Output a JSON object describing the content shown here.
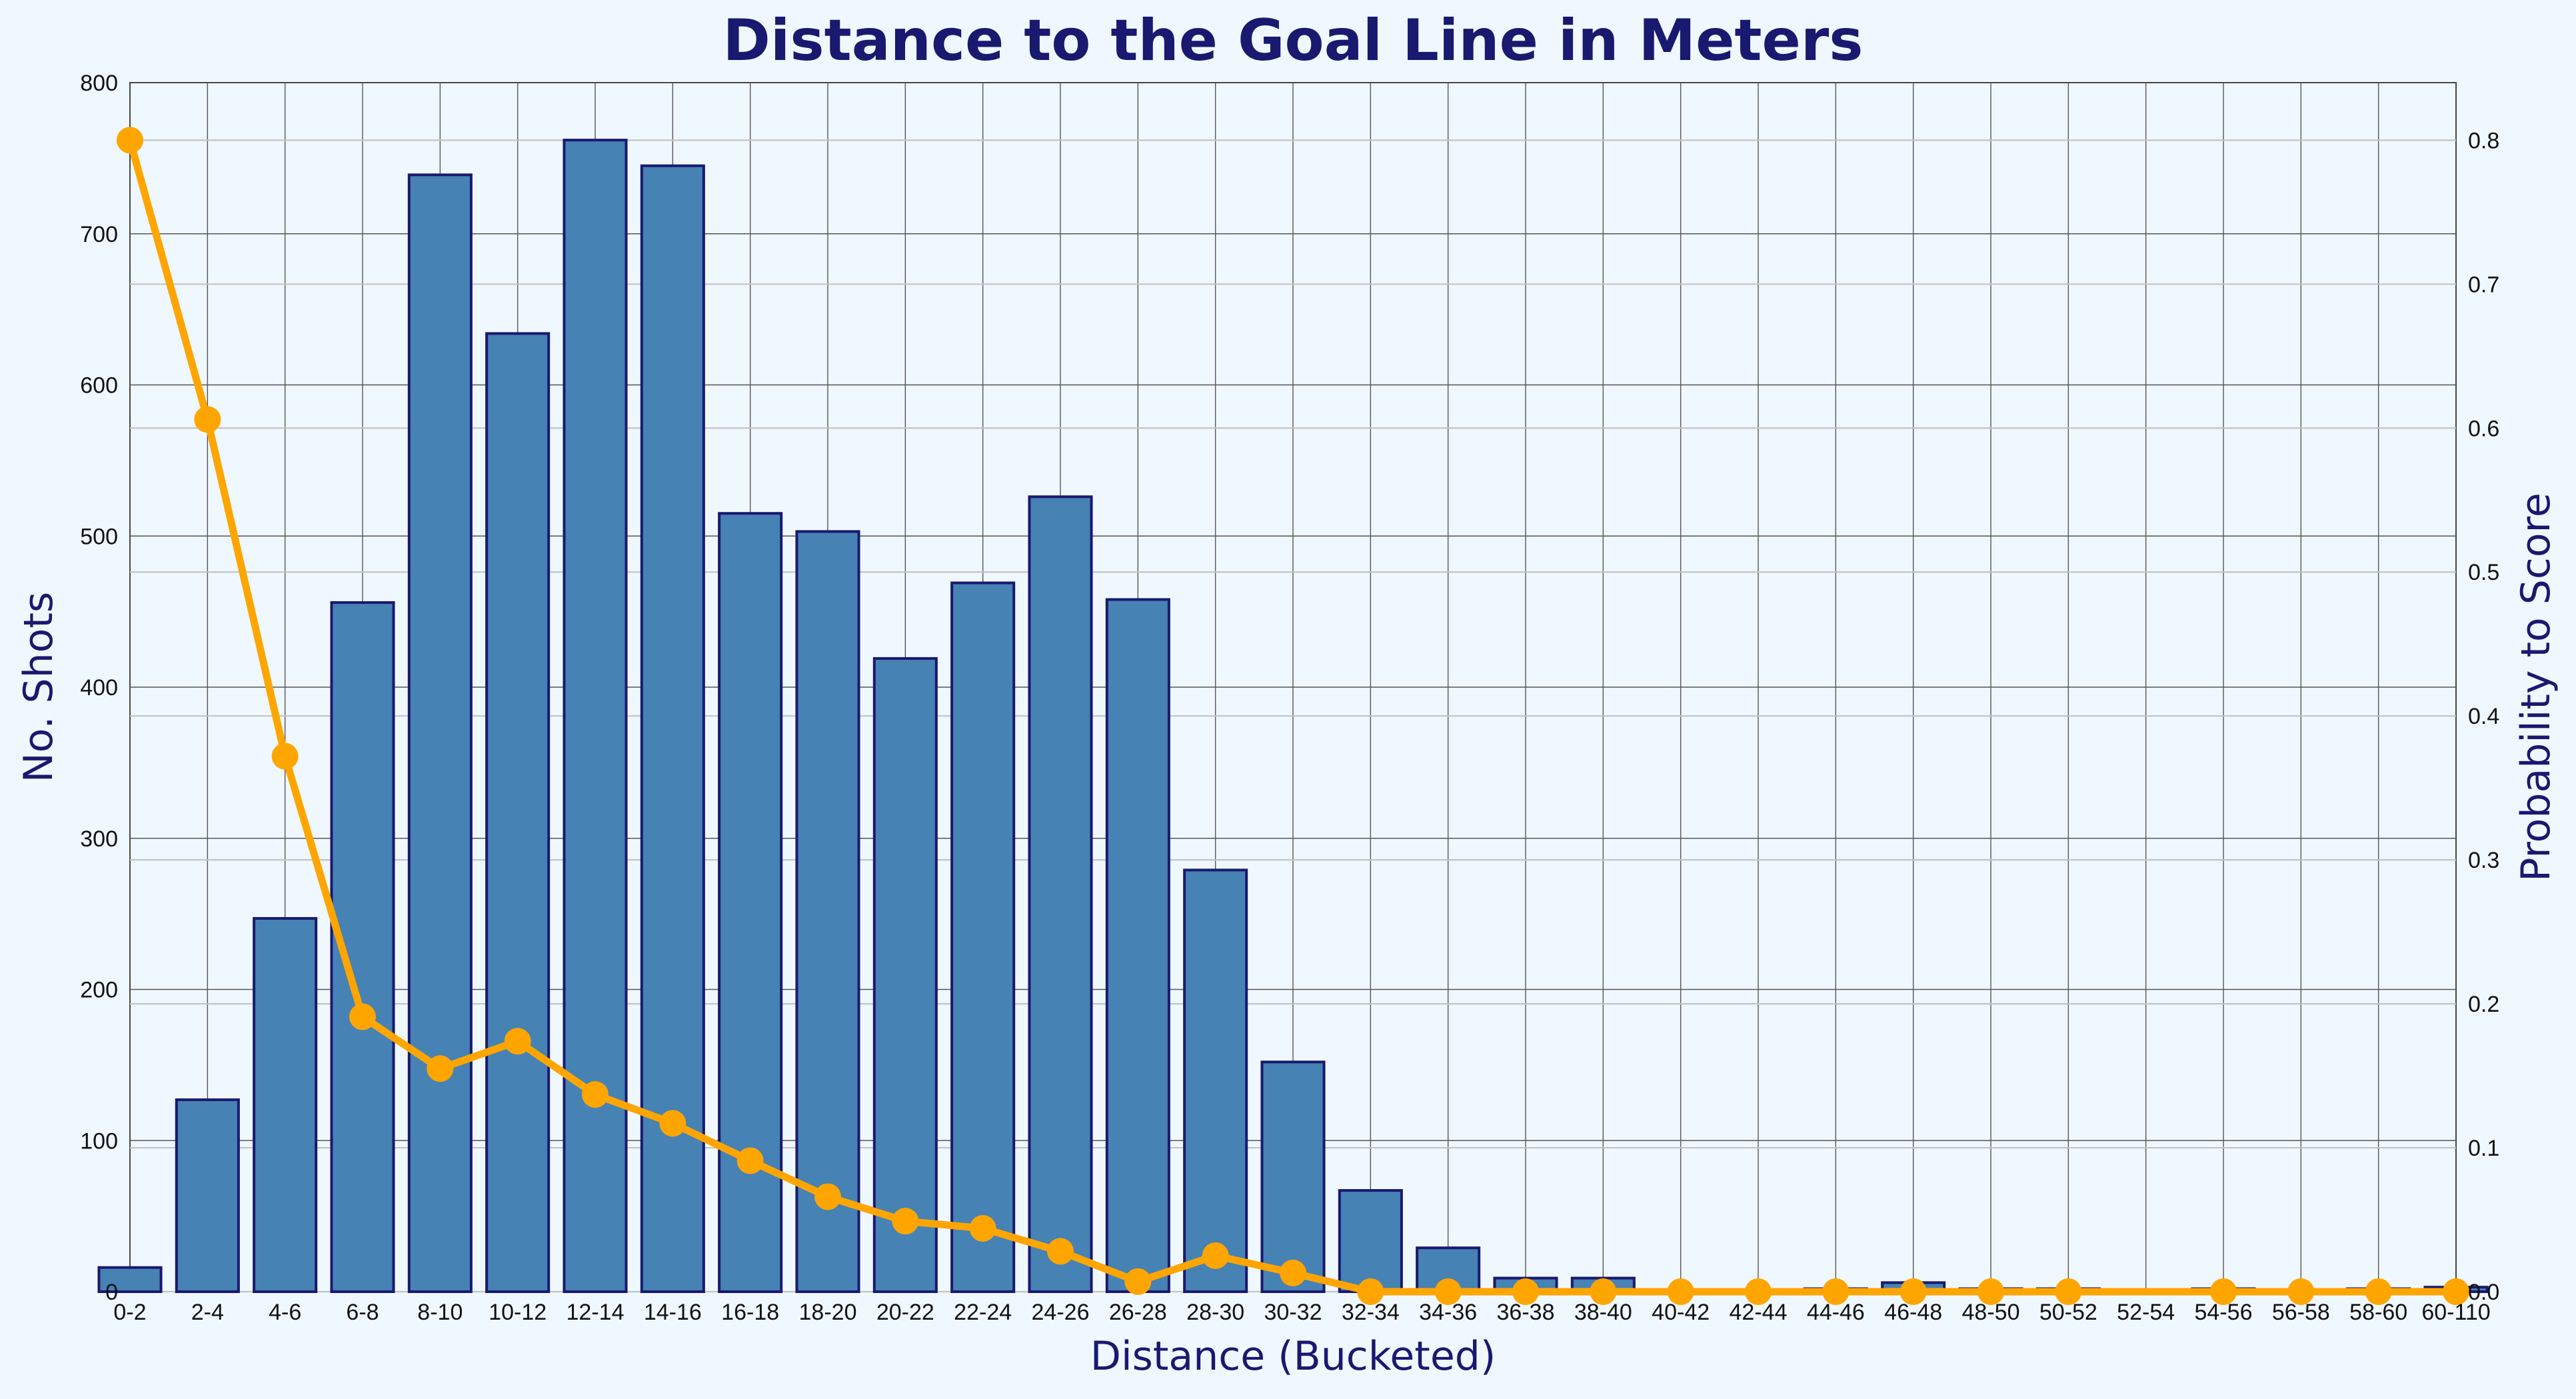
{
  "chart_data": {
    "type": "bar+line",
    "title": "Distance to the Goal Line in Meters",
    "xlabel": "Distance (Bucketed)",
    "ylabel_left": "No. Shots",
    "ylabel_right": "Probability to Score",
    "ylim_left": [
      0,
      800
    ],
    "ylim_right": [
      0,
      0.84
    ],
    "yticks_left": [
      0,
      100,
      200,
      300,
      400,
      500,
      600,
      700,
      800
    ],
    "yticks_right": [
      0.0,
      0.1,
      0.2,
      0.3,
      0.4,
      0.5,
      0.6,
      0.7,
      0.8
    ],
    "grid": true,
    "categories": [
      "0-2",
      "2-4",
      "4-6",
      "6-8",
      "8-10",
      "10-12",
      "12-14",
      "14-16",
      "16-18",
      "18-20",
      "20-22",
      "22-24",
      "24-26",
      "26-28",
      "28-30",
      "30-32",
      "32-34",
      "34-36",
      "36-38",
      "38-40",
      "40-42",
      "42-44",
      "44-46",
      "46-48",
      "48-50",
      "50-52",
      "52-54",
      "54-56",
      "56-58",
      "58-60",
      "60-110"
    ],
    "series": [
      {
        "kind": "bar",
        "axis": "left",
        "color": "#4682b4",
        "edge_color": "#191970",
        "values": [
          16,
          127,
          247,
          456,
          739,
          634,
          762,
          745,
          515,
          503,
          419,
          469,
          526,
          458,
          279,
          152,
          67,
          29,
          9,
          9,
          1,
          1,
          2,
          6,
          2,
          2,
          0,
          2,
          1,
          2,
          3
        ]
      },
      {
        "kind": "line",
        "axis": "right",
        "color": "#ffa500",
        "marker": "circle",
        "x": [
          "0-2",
          "2-4",
          "4-6",
          "6-8",
          "8-10",
          "10-12",
          "12-14",
          "14-16",
          "16-18",
          "18-20",
          "20-22",
          "22-24",
          "24-26",
          "26-28",
          "28-30",
          "30-32",
          "32-34",
          "34-36",
          "36-38",
          "38-40",
          "40-42",
          "42-44",
          "44-46",
          "46-48",
          "48-50",
          "50-52",
          "54-56",
          "56-58",
          "58-60",
          "60-110"
        ],
        "values": [
          0.8,
          0.606,
          0.372,
          0.191,
          0.155,
          0.174,
          0.137,
          0.117,
          0.091,
          0.066,
          0.049,
          0.044,
          0.028,
          0.007,
          0.025,
          0.013,
          0.0,
          0.0,
          0.0,
          0.0,
          0.0,
          0.0,
          0.0,
          0.0,
          0.0,
          0.0,
          0.0,
          0.0,
          0.0,
          0.0
        ]
      }
    ]
  }
}
